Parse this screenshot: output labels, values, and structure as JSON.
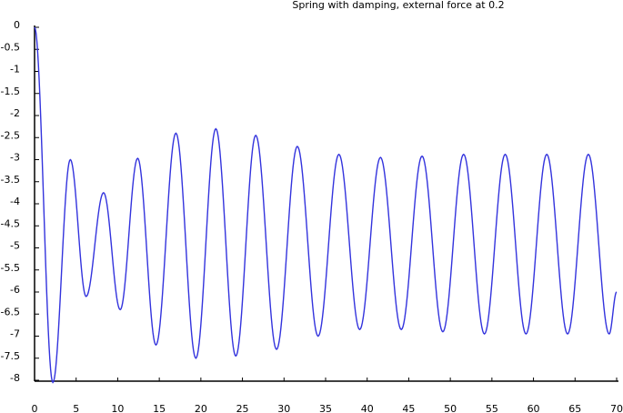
{
  "chart_data": {
    "type": "line",
    "title": "Spring with damping, external force at 0.2",
    "xlabel": "",
    "ylabel": "",
    "xlim": [
      0,
      70
    ],
    "ylim": [
      -8.1,
      0
    ],
    "grid": false,
    "legend": "none",
    "x_ticks": [
      0,
      5,
      10,
      15,
      20,
      25,
      30,
      35,
      40,
      45,
      50,
      55,
      60,
      65,
      70
    ],
    "x_tick_labels": [
      "0",
      "5",
      "10",
      "15",
      "20",
      "25",
      "30",
      "35",
      "40",
      "45",
      "50",
      "55",
      "60",
      "65",
      "70"
    ],
    "y_ticks": [
      0,
      -0.5,
      -1,
      -1.5,
      -2,
      -2.5,
      -3,
      -3.5,
      -4,
      -4.5,
      -5,
      -5.5,
      -6,
      -6.5,
      -7,
      -7.5,
      -8
    ],
    "y_tick_labels": [
      "0",
      "-0.5",
      "-1",
      "-1.5",
      "-2",
      "-2.5",
      "-3",
      "-3.5",
      "-4",
      "-4.5",
      "-5",
      "-5.5",
      "-6",
      "-6.5",
      "-7",
      "-7.5",
      "-8"
    ],
    "series": [
      {
        "color": "#3333dd",
        "keypoints": [
          [
            0,
            0
          ],
          [
            2.2,
            -8.05
          ],
          [
            4.3,
            -3.0
          ],
          [
            6.2,
            -6.1
          ],
          [
            8.3,
            -3.75
          ],
          [
            10.3,
            -6.4
          ],
          [
            12.4,
            -2.97
          ],
          [
            14.6,
            -7.2
          ],
          [
            17.0,
            -2.4
          ],
          [
            19.4,
            -7.5
          ],
          [
            21.8,
            -2.3
          ],
          [
            24.2,
            -7.45
          ],
          [
            26.6,
            -2.45
          ],
          [
            29.1,
            -7.3
          ],
          [
            31.6,
            -2.7
          ],
          [
            34.1,
            -7.0
          ],
          [
            36.6,
            -2.88
          ],
          [
            39.1,
            -6.85
          ],
          [
            41.6,
            -2.95
          ],
          [
            44.1,
            -6.85
          ],
          [
            46.6,
            -2.92
          ],
          [
            49.1,
            -6.9
          ],
          [
            51.6,
            -2.88
          ],
          [
            54.1,
            -6.95
          ],
          [
            56.6,
            -2.88
          ],
          [
            59.1,
            -6.95
          ],
          [
            61.6,
            -2.88
          ],
          [
            64.1,
            -6.95
          ],
          [
            66.6,
            -2.88
          ],
          [
            69.1,
            -6.95
          ],
          [
            70.0,
            -6.0
          ]
        ]
      }
    ]
  }
}
